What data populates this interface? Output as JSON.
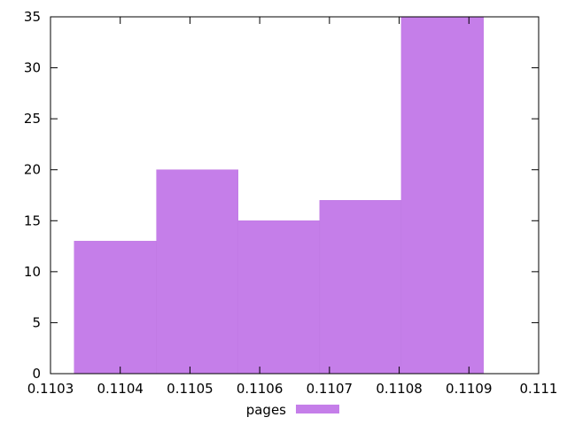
{
  "chart_data": {
    "type": "bar",
    "histogram": true,
    "bars": [
      {
        "x_start": 0.110334,
        "x_end": 0.110452,
        "value": 13
      },
      {
        "x_start": 0.110452,
        "x_end": 0.110569,
        "value": 20
      },
      {
        "x_start": 0.110569,
        "x_end": 0.110686,
        "value": 15
      },
      {
        "x_start": 0.110686,
        "x_end": 0.110803,
        "value": 17
      },
      {
        "x_start": 0.110803,
        "x_end": 0.110921,
        "value": 35
      }
    ],
    "series": [
      {
        "name": "pages",
        "color": "#c57ee9"
      }
    ],
    "xlim": [
      0.1103,
      0.111
    ],
    "ylim": [
      0,
      35
    ],
    "xticks": [
      "0.1103",
      "0.1104",
      "0.1105",
      "0.1106",
      "0.1107",
      "0.1108",
      "0.1109",
      "0.111"
    ],
    "yticks": [
      "0",
      "5",
      "10",
      "15",
      "20",
      "25",
      "30",
      "35"
    ],
    "grid": false,
    "legend_placement": "bottom-center"
  }
}
